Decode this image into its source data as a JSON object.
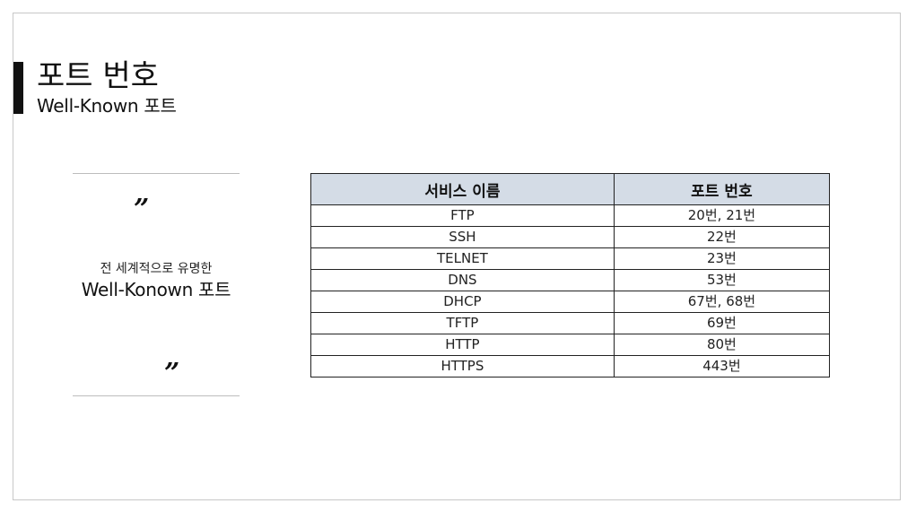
{
  "slide": {
    "title": "포트 번호",
    "subtitle": "Well-Known 포트"
  },
  "quote": {
    "open_mark": "”",
    "close_mark": "”",
    "line1": "전 세계적으로 유명한",
    "line2": "Well-Konown 포트"
  },
  "table": {
    "headers": [
      "서비스 이름",
      "포트 번호"
    ],
    "rows": [
      [
        "FTP",
        "20번, 21번"
      ],
      [
        "SSH",
        "22번"
      ],
      [
        "TELNET",
        "23번"
      ],
      [
        "DNS",
        "53번"
      ],
      [
        "DHCP",
        "67번, 68번"
      ],
      [
        "TFTP",
        "69번"
      ],
      [
        "HTTP",
        "80번"
      ],
      [
        "HTTPS",
        "443번"
      ]
    ],
    "header_color": "#d4dce6"
  }
}
